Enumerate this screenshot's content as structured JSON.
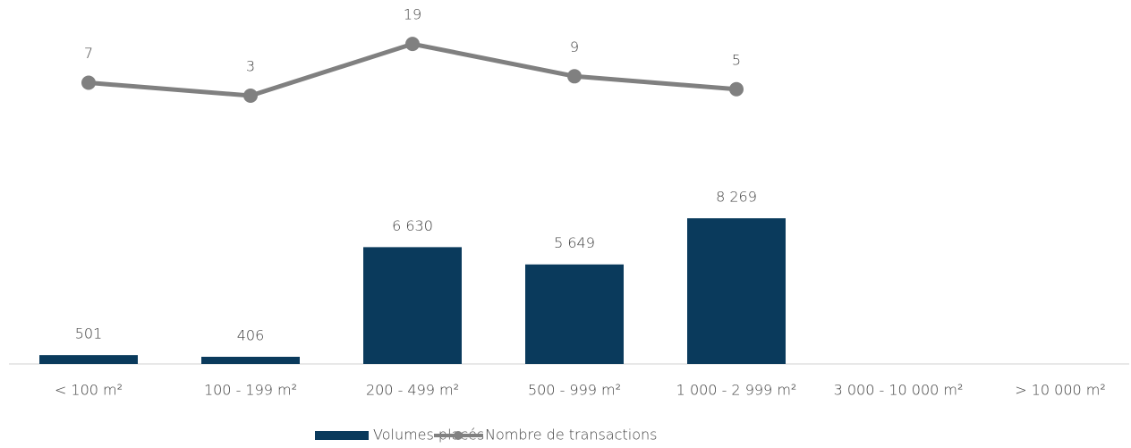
{
  "chart_data": {
    "type": "bar",
    "categories": [
      "< 100 m²",
      "100 - 199 m²",
      "200 - 499 m²",
      "500 - 999 m²",
      "1 000 - 2 999 m²",
      "3 000 - 10 000 m²",
      "> 10 000 m²"
    ],
    "series": [
      {
        "name": "Volumes placés",
        "type": "bar",
        "color": "#0a3a5c",
        "values": [
          501,
          406,
          6630,
          5649,
          8269,
          null,
          null
        ],
        "value_labels": [
          "501",
          "406",
          "6 630",
          "5 649",
          "8 269",
          null,
          null
        ]
      },
      {
        "name": "Nombre de transactions",
        "type": "line",
        "axis": "y2",
        "color": "#808080",
        "values": [
          7,
          3,
          19,
          9,
          5,
          null,
          null
        ]
      }
    ],
    "ylim": [
      0,
      20000
    ],
    "y2lim": [
      -80,
      29
    ],
    "legend": "bottom"
  }
}
